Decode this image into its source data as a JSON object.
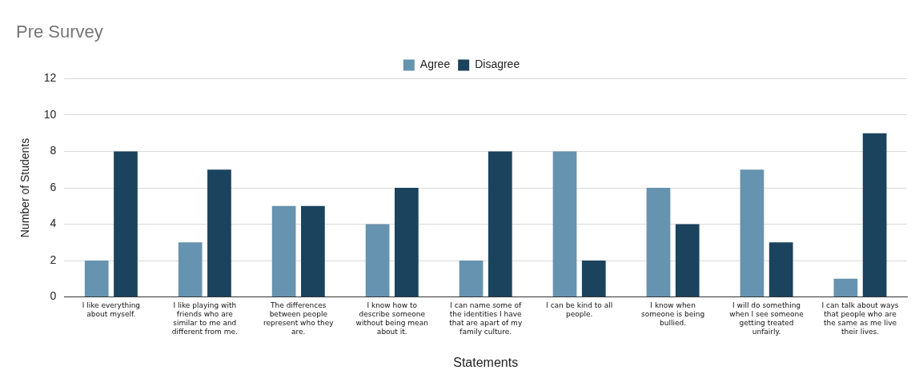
{
  "chart_data": {
    "type": "bar",
    "title": "Pre Survey",
    "xlabel": "Statements",
    "ylabel": "Number of Students",
    "categories": [
      "I like everything about myself.",
      "I like playing with friends who are similar to me and different from me.",
      "The differences between people represent who they are.",
      "I know how to describe someone without being mean about it.",
      "I can name some of the identities I have that are apart of my family culture.",
      "I can be kind to all people.",
      "I know when someone is being bullied.",
      "I will do something when I see someone getting treated unfairly.",
      "I can talk about ways that people who are the same as me live their lives."
    ],
    "series": [
      {
        "name": "Agree",
        "color": "#6693af",
        "values": [
          2,
          3,
          5,
          4,
          2,
          8,
          6,
          7,
          1
        ]
      },
      {
        "name": "Disagree",
        "color": "#1b435e",
        "values": [
          8,
          7,
          5,
          6,
          8,
          2,
          4,
          3,
          9
        ]
      }
    ],
    "ylim": [
      0,
      12
    ],
    "yticks": [
      0,
      2,
      4,
      6,
      8,
      10,
      12
    ],
    "grid": "y",
    "legend": "top"
  }
}
